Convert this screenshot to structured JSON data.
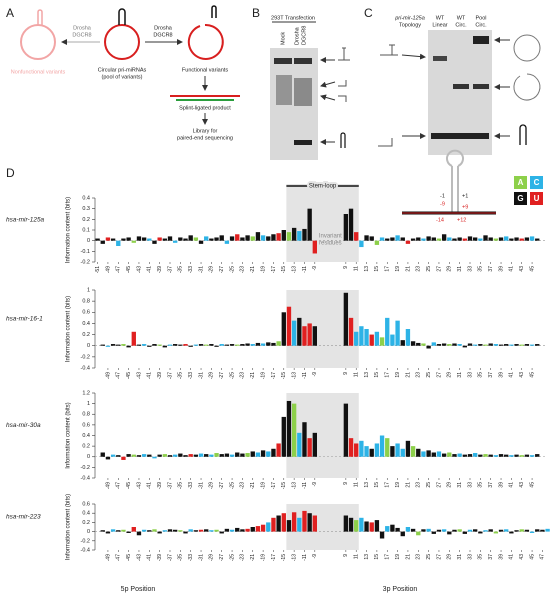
{
  "figure": {
    "panel_a": {
      "label": "A",
      "enzyme_left": [
        "Drosha",
        "DGCR8"
      ],
      "enzyme_right": [
        "Drosha",
        "DGCR8"
      ],
      "nonfunctional": "Nonfunctional variants",
      "circular": [
        "Circular pri-miRNAs",
        "(pool of variants)"
      ],
      "functional": "Functional variants",
      "splint": "Splint-ligated product",
      "library": [
        "Library for",
        "paired-end sequencing"
      ]
    },
    "panel_b": {
      "label": "B",
      "title": "293T Transfection",
      "lane_1": "Mock",
      "lane_2": [
        "Drosha",
        "DGCR8"
      ]
    },
    "panel_c": {
      "label": "C",
      "topology": [
        "pri-mir-125a",
        "Topology"
      ],
      "lanes": [
        [
          "WT",
          "Linear"
        ],
        [
          "WT",
          "Circ."
        ],
        [
          "Pool",
          "Circ."
        ]
      ]
    },
    "panel_d": {
      "label": "D",
      "stem_loop": "Stem-loop",
      "invariant": [
        "Invariant",
        "residues"
      ],
      "hairpin_labels": [
        "-1",
        "+1",
        "-9",
        "+9",
        "-14",
        "+12"
      ],
      "legend": [
        "A",
        "C",
        "G",
        "U"
      ],
      "legend_colors": [
        "#8dd04a",
        "#2db3e6",
        "#111111",
        "#e02020"
      ],
      "xlabel_5p": "5p Position",
      "xlabel_3p": "3p Position"
    }
  },
  "chart_data": [
    {
      "type": "bar",
      "title": "hsa-mir-125a",
      "ylabel": "Information content (bits)",
      "x": [
        -51,
        -50,
        -49,
        -48,
        -47,
        -46,
        -45,
        -44,
        -43,
        -42,
        -41,
        -40,
        -39,
        -38,
        -37,
        -36,
        -35,
        -34,
        -33,
        -32,
        -31,
        -30,
        -29,
        -28,
        -27,
        -26,
        -25,
        -24,
        -23,
        -22,
        -21,
        -20,
        -19,
        -18,
        -17,
        -16,
        -15,
        -14,
        -13,
        -12,
        -11,
        -10,
        -9,
        9,
        10,
        11,
        12,
        13,
        14,
        15,
        16,
        17,
        18,
        19,
        20,
        21,
        22,
        23,
        24,
        25,
        26,
        27,
        28,
        29,
        30,
        31,
        32,
        33,
        34,
        35,
        36,
        37,
        38,
        39,
        40,
        41,
        42,
        43,
        44,
        45,
        46
      ],
      "values": [
        0.02,
        -0.03,
        0.03,
        0.02,
        -0.05,
        0.02,
        0.03,
        -0.02,
        0.04,
        0.03,
        0.02,
        -0.03,
        0.03,
        0.02,
        0.04,
        -0.02,
        0.03,
        0.02,
        0.05,
        0.03,
        -0.03,
        0.04,
        0.02,
        0.03,
        0.05,
        -0.03,
        0.04,
        0.06,
        0.03,
        0.05,
        0.04,
        0.08,
        0.05,
        0.04,
        0.06,
        0.07,
        0.1,
        0.08,
        0.12,
        0.09,
        0.11,
        0.3,
        -0.12,
        0.25,
        0.3,
        0.08,
        -0.06,
        0.05,
        0.04,
        -0.04,
        0.03,
        0.02,
        0.03,
        0.05,
        0.03,
        -0.03,
        0.02,
        0.03,
        0.02,
        0.04,
        0.03,
        0.02,
        0.06,
        0.03,
        0.02,
        0.03,
        0.02,
        0.04,
        0.03,
        0.02,
        0.05,
        0.03,
        0.02,
        0.03,
        0.04,
        0.02,
        0.03,
        0.02,
        0.03,
        0.04,
        0.02
      ],
      "bases": "GGUGCGGAGGCGUGGCGGGAGCGGGCGUGGAGCGGUGAGCGGUGGUCGGACGGCGUGGCGGAGCGGUGGCGGAGCGGUGCG",
      "ylim": [
        -0.2,
        0.4
      ],
      "yticks": [
        -0.2,
        -0.1,
        0,
        0.1,
        0.2,
        0.3,
        0.4
      ],
      "xticks": [
        -51,
        -49,
        -47,
        -45,
        -43,
        -41,
        -39,
        -37,
        -35,
        -33,
        -31,
        -29,
        -27,
        -25,
        -23,
        -21,
        -19,
        -17,
        -15,
        -13,
        -11,
        -9,
        9,
        11,
        13,
        15,
        17,
        19,
        21,
        23,
        25,
        27,
        29,
        31,
        33,
        35,
        37,
        39,
        41,
        43,
        45
      ]
    },
    {
      "type": "bar",
      "title": "hsa-mir-16-1",
      "ylabel": "Information content (bits)",
      "x": [
        -50,
        -49,
        -48,
        -47,
        -46,
        -45,
        -44,
        -43,
        -42,
        -41,
        -40,
        -39,
        -38,
        -37,
        -36,
        -35,
        -34,
        -33,
        -32,
        -31,
        -30,
        -29,
        -28,
        -27,
        -26,
        -25,
        -24,
        -23,
        -22,
        -21,
        -20,
        -19,
        -18,
        -17,
        -16,
        -15,
        -14,
        -13,
        -12,
        -11,
        -10,
        -9,
        9,
        10,
        11,
        12,
        13,
        14,
        15,
        16,
        17,
        18,
        19,
        20,
        21,
        22,
        23,
        24,
        25,
        26,
        27,
        28,
        29,
        30,
        31,
        32,
        33,
        34,
        35,
        36,
        37,
        38,
        39,
        40,
        41,
        42,
        43,
        44,
        45,
        46
      ],
      "values": [
        0.02,
        -0.02,
        0.03,
        0.02,
        0.03,
        -0.03,
        0.25,
        0.02,
        0.03,
        -0.02,
        0.03,
        0.02,
        -0.03,
        0.02,
        0.03,
        0.02,
        0.03,
        -0.02,
        0.02,
        0.03,
        0.02,
        0.03,
        -0.02,
        0.03,
        0.02,
        0.03,
        0.02,
        0.03,
        0.04,
        0.03,
        0.05,
        0.04,
        0.06,
        0.05,
        0.08,
        0.6,
        0.7,
        0.45,
        0.5,
        0.35,
        0.4,
        0.35,
        0.95,
        0.5,
        0.25,
        0.35,
        0.3,
        0.2,
        0.25,
        0.15,
        0.5,
        0.2,
        0.45,
        0.1,
        0.3,
        0.08,
        0.05,
        0.04,
        -0.05,
        0.06,
        0.03,
        0.04,
        0.03,
        0.04,
        0.03,
        -0.03,
        0.04,
        0.02,
        0.03,
        0.02,
        0.04,
        0.03,
        0.02,
        0.03,
        0.02,
        0.03,
        0.02,
        0.03,
        0.02,
        0.03
      ],
      "bases": "GCGGAGUGCGGAGCGGUGCGAGGCGGAGGCGCGGAGUCGUUGGUCCCUCACCCGCGGAGCGGAGCGGCGAGCGGCGAGCG",
      "ylim": [
        -0.4,
        1.0
      ],
      "yticks": [
        -0.4,
        -0.2,
        0,
        0.2,
        0.4,
        0.6,
        0.8,
        1.0
      ],
      "xticks": [
        -49,
        -47,
        -45,
        -43,
        -41,
        -39,
        -37,
        -35,
        -33,
        -31,
        -29,
        -27,
        -25,
        -23,
        -21,
        -19,
        -17,
        -15,
        -13,
        -11,
        -9,
        9,
        11,
        13,
        15,
        17,
        19,
        21,
        23,
        25,
        27,
        29,
        31,
        33,
        35,
        37,
        39,
        41,
        43,
        45
      ]
    },
    {
      "type": "bar",
      "title": "hsa-mir-30a",
      "ylabel": "Information content (bits)",
      "x": [
        -50,
        -49,
        -48,
        -47,
        -46,
        -45,
        -44,
        -43,
        -42,
        -41,
        -40,
        -39,
        -38,
        -37,
        -36,
        -35,
        -34,
        -33,
        -32,
        -31,
        -30,
        -29,
        -28,
        -27,
        -26,
        -25,
        -24,
        -23,
        -22,
        -21,
        -20,
        -19,
        -18,
        -17,
        -16,
        -15,
        -14,
        -13,
        -12,
        -11,
        -10,
        -9,
        9,
        10,
        11,
        12,
        13,
        14,
        15,
        16,
        17,
        18,
        19,
        20,
        21,
        22,
        23,
        24,
        25,
        26,
        27,
        28,
        29,
        30,
        31,
        32,
        33,
        34,
        35,
        36,
        37,
        38,
        39,
        40,
        41,
        42,
        43,
        44,
        45,
        46
      ],
      "values": [
        0.08,
        -0.05,
        0.04,
        0.03,
        -0.06,
        0.05,
        0.04,
        0.03,
        0.05,
        0.04,
        -0.03,
        0.04,
        0.05,
        0.03,
        0.04,
        0.06,
        0.03,
        0.05,
        0.04,
        0.06,
        0.05,
        0.04,
        0.07,
        0.05,
        0.06,
        0.04,
        0.08,
        0.06,
        0.07,
        0.1,
        0.08,
        0.12,
        0.1,
        0.15,
        0.25,
        0.75,
        1.05,
        1.0,
        0.45,
        0.65,
        0.35,
        0.45,
        1.0,
        0.35,
        0.25,
        0.3,
        0.2,
        0.15,
        0.25,
        0.4,
        0.35,
        0.2,
        0.25,
        0.15,
        0.3,
        0.2,
        0.15,
        0.1,
        0.12,
        0.08,
        0.1,
        0.06,
        0.08,
        0.05,
        0.06,
        0.04,
        0.05,
        0.07,
        0.04,
        0.05,
        0.04,
        0.03,
        0.05,
        0.04,
        0.03,
        0.04,
        0.03,
        0.04,
        0.03,
        0.05
      ],
      "bases": "GGCGUGAGCGCGAGCGGUGCGCAGGCGGAGCGCGUGGACGUGGUUCCGCCAGCCGAGCGGCGAGCGGCGAGCGGCGAGCG",
      "ylim": [
        -0.4,
        1.2
      ],
      "yticks": [
        -0.4,
        -0.2,
        0,
        0.2,
        0.4,
        0.6,
        0.8,
        1.0,
        1.2
      ],
      "xticks": [
        -49,
        -47,
        -45,
        -43,
        -41,
        -39,
        -37,
        -35,
        -33,
        -31,
        -29,
        -27,
        -25,
        -23,
        -21,
        -19,
        -17,
        -15,
        -13,
        -11,
        -9,
        9,
        11,
        13,
        15,
        17,
        19,
        21,
        23,
        25,
        27,
        29,
        31,
        33,
        35,
        37,
        39,
        41,
        43,
        45
      ]
    },
    {
      "type": "bar",
      "title": "hsa-mir-223",
      "ylabel": "Information content (bits)",
      "x": [
        -50,
        -49,
        -48,
        -47,
        -46,
        -45,
        -44,
        -43,
        -42,
        -41,
        -40,
        -39,
        -38,
        -37,
        -36,
        -35,
        -34,
        -33,
        -32,
        -31,
        -30,
        -29,
        -28,
        -27,
        -26,
        -25,
        -24,
        -23,
        -22,
        -21,
        -20,
        -19,
        -18,
        -17,
        -16,
        -15,
        -14,
        -13,
        -12,
        -11,
        -10,
        -9,
        9,
        10,
        11,
        12,
        13,
        14,
        15,
        16,
        17,
        18,
        19,
        20,
        21,
        22,
        23,
        24,
        25,
        26,
        27,
        28,
        29,
        30,
        31,
        32,
        33,
        34,
        35,
        36,
        37,
        38,
        39,
        40,
        41,
        42,
        43,
        44,
        45,
        46,
        47,
        48
      ],
      "values": [
        0.03,
        -0.04,
        0.05,
        0.03,
        0.04,
        -0.03,
        0.1,
        -0.08,
        0.04,
        0.03,
        0.05,
        -0.04,
        0.03,
        0.05,
        0.04,
        0.03,
        -0.04,
        0.05,
        0.03,
        0.04,
        0.05,
        0.03,
        0.04,
        -0.04,
        0.06,
        0.04,
        0.08,
        0.05,
        0.06,
        0.1,
        0.12,
        0.15,
        0.2,
        0.3,
        0.35,
        0.4,
        0.25,
        0.42,
        0.3,
        0.45,
        0.4,
        0.35,
        0.35,
        0.3,
        0.25,
        0.3,
        0.22,
        0.2,
        0.25,
        -0.15,
        0.12,
        0.15,
        0.08,
        -0.1,
        0.1,
        0.06,
        -0.08,
        0.05,
        0.06,
        -0.05,
        0.04,
        0.05,
        -0.06,
        0.04,
        0.05,
        -0.05,
        0.04,
        0.05,
        -0.04,
        0.03,
        0.05,
        -0.04,
        0.04,
        0.05,
        -0.04,
        0.03,
        0.05,
        0.04,
        -0.03,
        0.05,
        0.04,
        0.06
      ],
      "bases": "GGCGAGUGCGAGCGGAGCGUGCAGGCGGUGUUCUGUGUCUGUGGACGUGGCGGGCGAGCGGCGGAGCGGCGAGCGGAGCGGC",
      "ylim": [
        -0.4,
        0.6
      ],
      "yticks": [
        -0.4,
        -0.2,
        0,
        0.2,
        0.4,
        0.6
      ],
      "xticks": [
        -49,
        -47,
        -45,
        -43,
        -41,
        -39,
        -37,
        -35,
        -33,
        -31,
        -29,
        -27,
        -25,
        -23,
        -21,
        -19,
        -17,
        -15,
        -13,
        -11,
        -9,
        9,
        11,
        13,
        15,
        17,
        19,
        21,
        23,
        25,
        27,
        29,
        31,
        33,
        35,
        37,
        39,
        41,
        43,
        45,
        47
      ]
    }
  ]
}
